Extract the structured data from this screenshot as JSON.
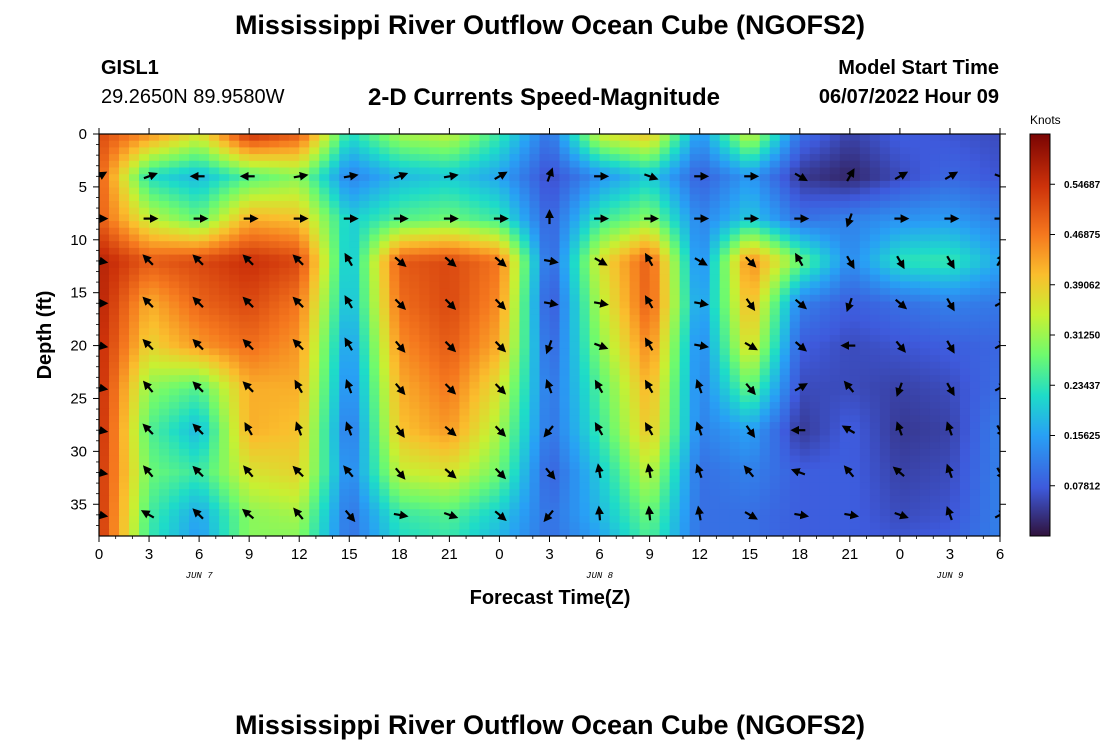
{
  "header": {
    "title": "Mississippi River Outflow Ocean Cube (NGOFS2)",
    "station": "GISL1",
    "coordinates": "29.2650N  89.9580W",
    "subtitle": "2-D Currents Speed-Magnitude",
    "model_start_label": "Model Start Time",
    "model_start_value": "06/07/2022 Hour 09"
  },
  "footer": {
    "title": "Mississippi River Outflow Ocean Cube (NGOFS2)"
  },
  "chart_data": {
    "type": "heatmap",
    "xlabel": "Forecast Time(Z)",
    "ylabel": "Depth (ft)",
    "x_tick_labels": [
      "0",
      "3",
      "6",
      "9",
      "12",
      "15",
      "18",
      "21",
      "0",
      "3",
      "6",
      "9",
      "12",
      "15",
      "18",
      "21",
      "0",
      "3",
      "6"
    ],
    "date_labels": [
      {
        "label": "JUN 7",
        "at_tick": 2
      },
      {
        "label": "JUN 8",
        "at_tick": 10
      },
      {
        "label": "JUN 9",
        "at_tick": 17
      }
    ],
    "x_range_hours": [
      0,
      54
    ],
    "y_ticks": [
      0,
      5,
      10,
      15,
      20,
      25,
      30,
      35
    ],
    "y_range_ft": [
      0,
      38
    ],
    "y_inverted": true,
    "colorbar": {
      "label": "Knots",
      "range": [
        0,
        0.625
      ],
      "tick_labels": [
        "0.07812",
        "0.15625",
        "0.23437",
        "0.31250",
        "0.39062",
        "0.46875",
        "0.54687"
      ],
      "tick_values": [
        0.078125,
        0.15625,
        0.234375,
        0.3125,
        0.390625,
        0.46875,
        0.546875
      ]
    },
    "speed_grid": {
      "x_hours": [
        0,
        3,
        6,
        9,
        12,
        15,
        18,
        21,
        24,
        27,
        30,
        33,
        36,
        39,
        42,
        45,
        48,
        51,
        54
      ],
      "depths_ft": [
        0,
        4,
        8,
        12,
        16,
        20,
        24,
        28,
        32,
        36,
        38
      ],
      "values": [
        [
          0.52,
          0.45,
          0.36,
          0.55,
          0.5,
          0.22,
          0.32,
          0.34,
          0.24,
          0.1,
          0.35,
          0.4,
          0.14,
          0.35,
          0.1,
          0.05,
          0.08,
          0.07,
          0.06
        ],
        [
          0.5,
          0.22,
          0.18,
          0.26,
          0.3,
          0.12,
          0.18,
          0.2,
          0.16,
          0.06,
          0.14,
          0.2,
          0.08,
          0.15,
          0.04,
          0.02,
          0.06,
          0.09,
          0.07
        ],
        [
          0.5,
          0.34,
          0.27,
          0.42,
          0.4,
          0.2,
          0.26,
          0.28,
          0.24,
          0.08,
          0.24,
          0.3,
          0.12,
          0.2,
          0.1,
          0.12,
          0.14,
          0.15,
          0.12
        ],
        [
          0.57,
          0.5,
          0.52,
          0.55,
          0.52,
          0.18,
          0.5,
          0.52,
          0.47,
          0.08,
          0.36,
          0.5,
          0.12,
          0.46,
          0.28,
          0.13,
          0.23,
          0.24,
          0.16
        ],
        [
          0.57,
          0.42,
          0.49,
          0.52,
          0.47,
          0.17,
          0.48,
          0.52,
          0.45,
          0.06,
          0.33,
          0.5,
          0.14,
          0.42,
          0.12,
          0.08,
          0.1,
          0.12,
          0.11
        ],
        [
          0.56,
          0.38,
          0.44,
          0.48,
          0.44,
          0.14,
          0.45,
          0.5,
          0.42,
          0.08,
          0.3,
          0.46,
          0.12,
          0.38,
          0.08,
          0.06,
          0.07,
          0.08,
          0.09
        ],
        [
          0.56,
          0.3,
          0.26,
          0.42,
          0.42,
          0.12,
          0.42,
          0.47,
          0.36,
          0.1,
          0.26,
          0.42,
          0.12,
          0.28,
          0.06,
          0.06,
          0.05,
          0.06,
          0.1
        ],
        [
          0.56,
          0.26,
          0.18,
          0.42,
          0.4,
          0.1,
          0.4,
          0.44,
          0.32,
          0.1,
          0.24,
          0.4,
          0.12,
          0.16,
          0.04,
          0.08,
          0.04,
          0.05,
          0.12
        ],
        [
          0.55,
          0.28,
          0.24,
          0.36,
          0.38,
          0.12,
          0.34,
          0.36,
          0.28,
          0.08,
          0.2,
          0.34,
          0.1,
          0.12,
          0.08,
          0.08,
          0.05,
          0.06,
          0.12
        ],
        [
          0.55,
          0.25,
          0.16,
          0.3,
          0.32,
          0.1,
          0.24,
          0.26,
          0.2,
          0.1,
          0.18,
          0.28,
          0.1,
          0.1,
          0.08,
          0.08,
          0.06,
          0.07,
          0.12
        ],
        [
          0.55,
          0.24,
          0.15,
          0.3,
          0.3,
          0.1,
          0.22,
          0.24,
          0.18,
          0.1,
          0.16,
          0.26,
          0.1,
          0.1,
          0.08,
          0.08,
          0.07,
          0.08,
          0.12
        ]
      ]
    },
    "vectors": {
      "x_hours": [
        0,
        3,
        6,
        9,
        12,
        15,
        18,
        21,
        24,
        27,
        30,
        33,
        36,
        39,
        42,
        45,
        48,
        51,
        54
      ],
      "depths_ft": [
        4,
        8,
        12,
        16,
        20,
        24,
        28,
        32,
        36
      ],
      "directions_deg": [
        [
          60,
          70,
          270,
          270,
          80,
          80,
          70,
          80,
          60,
          20,
          90,
          110,
          90,
          90,
          120,
          30,
          60,
          60,
          110
        ],
        [
          90,
          90,
          90,
          90,
          90,
          90,
          90,
          90,
          90,
          0,
          90,
          90,
          90,
          90,
          90,
          200,
          90,
          90,
          90
        ],
        [
          100,
          315,
          315,
          315,
          315,
          330,
          130,
          130,
          130,
          100,
          120,
          330,
          120,
          135,
          330,
          150,
          150,
          150,
          30
        ],
        [
          90,
          315,
          315,
          315,
          315,
          330,
          135,
          135,
          135,
          100,
          100,
          330,
          100,
          145,
          130,
          200,
          130,
          150,
          60
        ],
        [
          100,
          315,
          315,
          315,
          315,
          330,
          140,
          135,
          135,
          200,
          110,
          330,
          100,
          120,
          130,
          270,
          140,
          150,
          60
        ],
        [
          100,
          320,
          315,
          315,
          330,
          340,
          140,
          135,
          135,
          340,
          330,
          330,
          340,
          140,
          60,
          320,
          200,
          150,
          60
        ],
        [
          100,
          315,
          315,
          330,
          340,
          340,
          145,
          130,
          135,
          220,
          330,
          330,
          340,
          145,
          270,
          300,
          340,
          340,
          150
        ],
        [
          100,
          320,
          315,
          320,
          315,
          320,
          140,
          130,
          135,
          140,
          350,
          350,
          340,
          320,
          290,
          320,
          310,
          340,
          150
        ],
        [
          100,
          300,
          315,
          310,
          320,
          140,
          100,
          110,
          130,
          220,
          355,
          355,
          350,
          120,
          100,
          100,
          110,
          340,
          60
        ]
      ]
    }
  }
}
